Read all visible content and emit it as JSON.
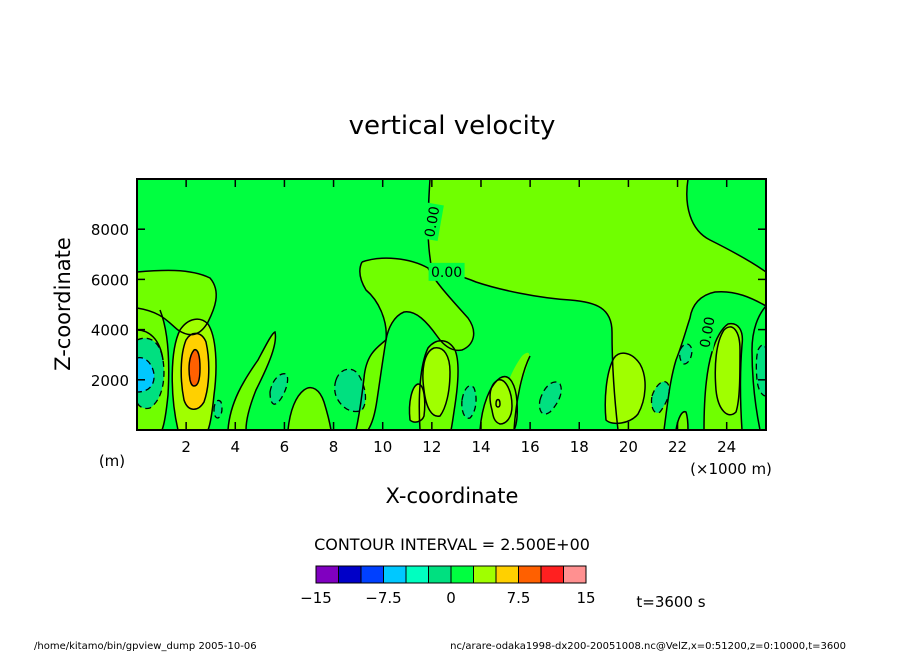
{
  "chart_data": {
    "type": "heatmap",
    "title": "vertical velocity",
    "xlabel": "X-coordinate",
    "ylabel": "Z-coordinate",
    "x_unit": "(×1000 m)",
    "y_unit": "(m)",
    "xlim": [
      0,
      25.6
    ],
    "ylim": [
      0,
      10000
    ],
    "x_ticks": [
      2,
      4,
      6,
      8,
      10,
      12,
      14,
      16,
      18,
      20,
      22,
      24
    ],
    "x_tick_labels": [
      "2",
      "4",
      "6",
      "8",
      "10",
      "12",
      "14",
      "16",
      "18",
      "20",
      "22",
      "24"
    ],
    "y_ticks": [
      2000,
      4000,
      6000,
      8000
    ],
    "y_tick_labels": [
      "2000",
      "4000",
      "6000",
      "8000"
    ],
    "contour_labels": [
      {
        "text": "0.00",
        "x": 12.0,
        "y": 8300,
        "rotate": -80
      },
      {
        "text": "0.00",
        "x": 12.6,
        "y": 6300,
        "rotate": 0
      },
      {
        "text": "0.00",
        "x": 23.2,
        "y": 3900,
        "rotate": -80
      }
    ],
    "contour_interval_label": "CONTOUR INTERVAL = 2.500E+00",
    "colorbar": {
      "colors": [
        "#8000c0",
        "#0000c8",
        "#0040ff",
        "#00c8ff",
        "#00ffc0",
        "#00e080",
        "#00ff40",
        "#a0ff00",
        "#ffd000",
        "#ff6000",
        "#ff2020",
        "#ff9090"
      ],
      "tick_labels": [
        "−15",
        "−7.5",
        "0",
        "7.5",
        "15"
      ],
      "tick_values": [
        -15,
        -7.5,
        0,
        7.5,
        15
      ],
      "range": [
        -15,
        15
      ]
    },
    "time_label": "t=3600 s",
    "features": [
      {
        "sign": "positive",
        "x": 2.3,
        "z": 2600,
        "peak_level": 12.5
      },
      {
        "sign": "negative",
        "x": 0.4,
        "z": 2200,
        "peak_level": -7.5
      },
      {
        "sign": "positive",
        "x": 12.1,
        "z": 2300,
        "peak_level": 5.0
      },
      {
        "sign": "positive",
        "x": 14.8,
        "z": 1400,
        "peak_level": 5.0
      },
      {
        "sign": "positive",
        "x": 20.0,
        "z": 1800,
        "peak_level": 5.0
      },
      {
        "sign": "positive",
        "x": 24.0,
        "z": 2700,
        "peak_level": 5.0
      },
      {
        "sign": "negative",
        "x": 9.0,
        "z": 1600,
        "peak_level": -2.5
      },
      {
        "sign": "negative",
        "x": 16.8,
        "z": 1300,
        "peak_level": -2.5
      },
      {
        "sign": "negative",
        "x": 21.2,
        "z": 1300,
        "peak_level": -2.5
      }
    ]
  },
  "footer": {
    "left": "/home/kitamo/bin/gpview_dump  2005-10-06",
    "right": "nc/arare-odaka1998-dx200-20051008.nc@VelZ,x=0:51200,z=0:10000,t=3600"
  },
  "colors": {
    "zero_band": "#00ff40",
    "weak_positive": "#70ff00",
    "negative": "#00e080"
  }
}
